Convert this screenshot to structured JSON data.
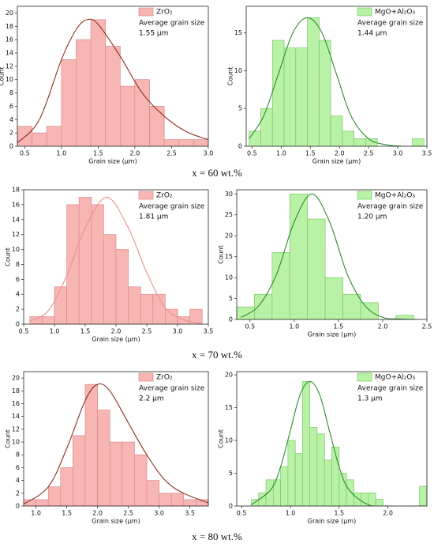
{
  "captions": [
    "x = 60 wt.%",
    "x = 70 wt.%",
    "x = 80 wt.%"
  ],
  "chart_data": [
    {
      "type": "histogram",
      "name": "ZrO₂",
      "color": "#f7b6b4",
      "edgecolor": "#d98a88",
      "annotations": [
        "Average grain size",
        "1.55 μm"
      ],
      "xlabel": "Grain size (μm)",
      "ylabel": "Count",
      "bins": [
        0.4,
        0.6,
        0.8,
        1.0,
        1.2,
        1.4,
        1.6,
        1.8,
        2.0,
        2.2,
        2.4,
        2.6,
        2.8,
        3.0
      ],
      "values": [
        3,
        2,
        3,
        13,
        16,
        19,
        15,
        9,
        10,
        6,
        1,
        1,
        1
      ],
      "fit": {
        "color": "#8b2e1e",
        "x": [
          0.4,
          0.7,
          1.0,
          1.2,
          1.35,
          1.5,
          1.8,
          2.1,
          2.4,
          2.7,
          3.0
        ],
        "values": [
          0.5,
          4,
          13,
          17.5,
          19,
          18.3,
          13.5,
          8,
          4.5,
          2.2,
          1
        ]
      },
      "xlim": [
        0.4,
        3.0
      ],
      "ylim": [
        0,
        21
      ],
      "xticks": [
        0.5,
        {
          "value": 1,
          "label": "1.0"
        },
        1.5,
        {
          "value": 2,
          "label": "2.0"
        },
        2.5,
        {
          "value": 3,
          "label": "3.0"
        }
      ],
      "yticks": [
        0,
        2,
        4,
        6,
        8,
        10,
        12,
        14,
        16,
        18,
        20
      ]
    },
    {
      "type": "histogram",
      "name": "MgO+Al₂O₃",
      "color": "#b9f2a6",
      "edgecolor": "#79c862",
      "annotations": [
        "Average grain size",
        "1.44 μm"
      ],
      "xlabel": "Grain size (μm)",
      "ylabel": "Count",
      "bins": [
        0.45,
        0.65,
        0.85,
        1.05,
        1.25,
        1.45,
        1.65,
        1.85,
        2.05,
        2.25,
        2.45,
        2.65,
        2.85,
        3.05,
        3.25,
        3.45
      ],
      "values": [
        2,
        5,
        14,
        13,
        13,
        17,
        14,
        4,
        2,
        1,
        1,
        0,
        0,
        0,
        1
      ],
      "fit": {
        "color": "#2e8b2e",
        "x": [
          0.45,
          0.7,
          0.95,
          1.2,
          1.45,
          1.7,
          1.95,
          2.2,
          2.5,
          2.8,
          3.1,
          3.4
        ],
        "values": [
          1,
          4,
          9.5,
          15,
          17,
          15,
          9.5,
          4,
          1,
          0.2,
          0,
          0
        ]
      },
      "xlim": [
        0.4,
        3.5
      ],
      "ylim": [
        0,
        18.5
      ],
      "xticks": [
        0.5,
        {
          "value": 1,
          "label": "1.0"
        },
        1.5,
        {
          "value": 2,
          "label": "2.0"
        },
        2.5,
        {
          "value": 3,
          "label": "3.0"
        },
        3.5
      ],
      "yticks": [
        0,
        5,
        10,
        15
      ]
    },
    {
      "type": "histogram",
      "name": "ZrO₂",
      "color": "#f7b6b4",
      "edgecolor": "#d98a88",
      "annotations": [
        "Average grain size",
        "1.81 μm"
      ],
      "xlabel": "Grain size (μm)",
      "ylabel": "Count",
      "bins": [
        0.6,
        0.8,
        1.0,
        1.2,
        1.4,
        1.6,
        1.8,
        2.0,
        2.2,
        2.4,
        2.6,
        2.8,
        3.0,
        3.2,
        3.4
      ],
      "values": [
        1,
        1,
        5,
        16,
        17,
        16,
        12,
        10,
        5,
        4,
        4,
        2,
        1,
        2
      ],
      "fit": {
        "color": "#f08e8e",
        "x": [
          0.6,
          0.9,
          1.2,
          1.5,
          1.85,
          2.2,
          2.5,
          2.8,
          3.1,
          3.4
        ],
        "values": [
          0.4,
          1.8,
          6.5,
          12.9,
          17,
          12.9,
          6.9,
          2.2,
          0.6,
          0.1
        ]
      },
      "xlim": [
        0.5,
        3.5
      ],
      "ylim": [
        0,
        18
      ],
      "xticks": [
        0.5,
        {
          "value": 1,
          "label": "1.0"
        },
        1.5,
        {
          "value": 2,
          "label": "2.0"
        },
        2.5,
        {
          "value": 3,
          "label": "3.0"
        },
        3.5
      ],
      "yticks": [
        0,
        2,
        4,
        6,
        8,
        10,
        12,
        14,
        16,
        18
      ]
    },
    {
      "type": "histogram",
      "name": "MgO+Al₂O₃",
      "color": "#b9f2a6",
      "edgecolor": "#79c862",
      "annotations": [
        "Average grain size",
        "1.20 μm"
      ],
      "xlabel": "Grain size (μm)",
      "ylabel": "Count",
      "bins": [
        0.35,
        0.55,
        0.75,
        0.95,
        1.15,
        1.35,
        1.55,
        1.75,
        1.95,
        2.15,
        2.35
      ],
      "values": [
        3,
        6,
        16,
        30,
        24,
        10,
        6,
        4,
        0,
        1
      ],
      "fit": {
        "color": "#2e8b2e",
        "x": [
          0.4,
          0.6,
          0.8,
          1.0,
          1.2,
          1.4,
          1.6,
          1.8,
          2.0,
          2.2,
          2.4
        ],
        "values": [
          0.5,
          3.3,
          10.8,
          23.3,
          30,
          23.3,
          10.8,
          3.3,
          0.5,
          0.1,
          0
        ]
      },
      "xlim": [
        0.35,
        2.5
      ],
      "ylim": [
        0,
        31
      ],
      "xticks": [
        0.5,
        {
          "value": 1,
          "label": "1.0"
        },
        1.5,
        {
          "value": 2,
          "label": "2.0"
        },
        2.5
      ],
      "yticks": [
        0,
        5,
        10,
        15,
        20,
        25,
        30
      ]
    },
    {
      "type": "histogram",
      "name": "ZrO₂",
      "color": "#f7b6b4",
      "edgecolor": "#d98a88",
      "annotations": [
        "Average grain size",
        "2.2 μm"
      ],
      "xlabel": "Grain size (μm)",
      "ylabel": "Count",
      "bins": [
        0.8,
        1.0,
        1.2,
        1.4,
        1.6,
        1.8,
        2.0,
        2.2,
        2.4,
        2.6,
        2.8,
        3.0,
        3.2,
        3.4,
        3.6,
        3.8
      ],
      "values": [
        1,
        1,
        3,
        6,
        11,
        19,
        15,
        10,
        10,
        8,
        4,
        2,
        2,
        1,
        1
      ],
      "fit": {
        "color": "#8b2e1e",
        "x": [
          0.8,
          1.2,
          1.5,
          1.8,
          2.0,
          2.2,
          2.5,
          2.8,
          3.1,
          3.4,
          3.8
        ],
        "values": [
          0.3,
          3,
          9,
          16.5,
          19,
          18,
          13,
          8,
          4,
          2,
          0.5
        ]
      },
      "xlim": [
        0.8,
        3.8
      ],
      "ylim": [
        0,
        21
      ],
      "xticks": [
        {
          "value": 1,
          "label": "1.0"
        },
        1.5,
        {
          "value": 2,
          "label": "2.0"
        },
        2.5,
        {
          "value": 3,
          "label": "3.0"
        },
        3.5
      ],
      "yticks": [
        0,
        2,
        4,
        6,
        8,
        10,
        12,
        14,
        16,
        18,
        20
      ]
    },
    {
      "type": "histogram",
      "name": "MgO+Al₂O₃",
      "color": "#b9f2a6",
      "edgecolor": "#79c862",
      "annotations": [
        "Average grain size",
        "1.3 μm"
      ],
      "xlabel": "Grain size (μm)",
      "ylabel": "Count",
      "bins": [
        0.6,
        0.675,
        0.75,
        0.825,
        0.9,
        0.975,
        1.05,
        1.125,
        1.2,
        1.275,
        1.35,
        1.425,
        1.5,
        1.575,
        1.65,
        1.725,
        1.8,
        1.875,
        1.95,
        2.025,
        2.1,
        2.175,
        2.25,
        2.325,
        2.4
      ],
      "values": [
        1,
        2,
        4,
        4,
        6,
        10,
        8,
        19,
        12,
        11,
        7,
        9,
        5,
        4,
        2,
        2,
        2,
        1,
        0,
        0,
        0,
        0,
        0,
        3
      ],
      "fit": {
        "color": "#2e8b2e",
        "x": [
          0.6,
          0.8,
          0.9,
          1.0,
          1.1,
          1.2,
          1.3,
          1.4,
          1.5,
          1.6,
          1.8,
          2.0,
          2.4
        ],
        "values": [
          0.2,
          2.5,
          6,
          11.5,
          17,
          19,
          17,
          11.5,
          6,
          2.5,
          0.2,
          0,
          0
        ]
      },
      "xlim": [
        0.45,
        2.4
      ],
      "ylim": [
        0,
        20.5
      ],
      "xticks": [
        0.5,
        {
          "value": 1,
          "label": "1.0"
        },
        1.5,
        {
          "value": 2,
          "label": "2.0"
        }
      ],
      "yticks": [
        0,
        5,
        10,
        15,
        20
      ]
    }
  ]
}
